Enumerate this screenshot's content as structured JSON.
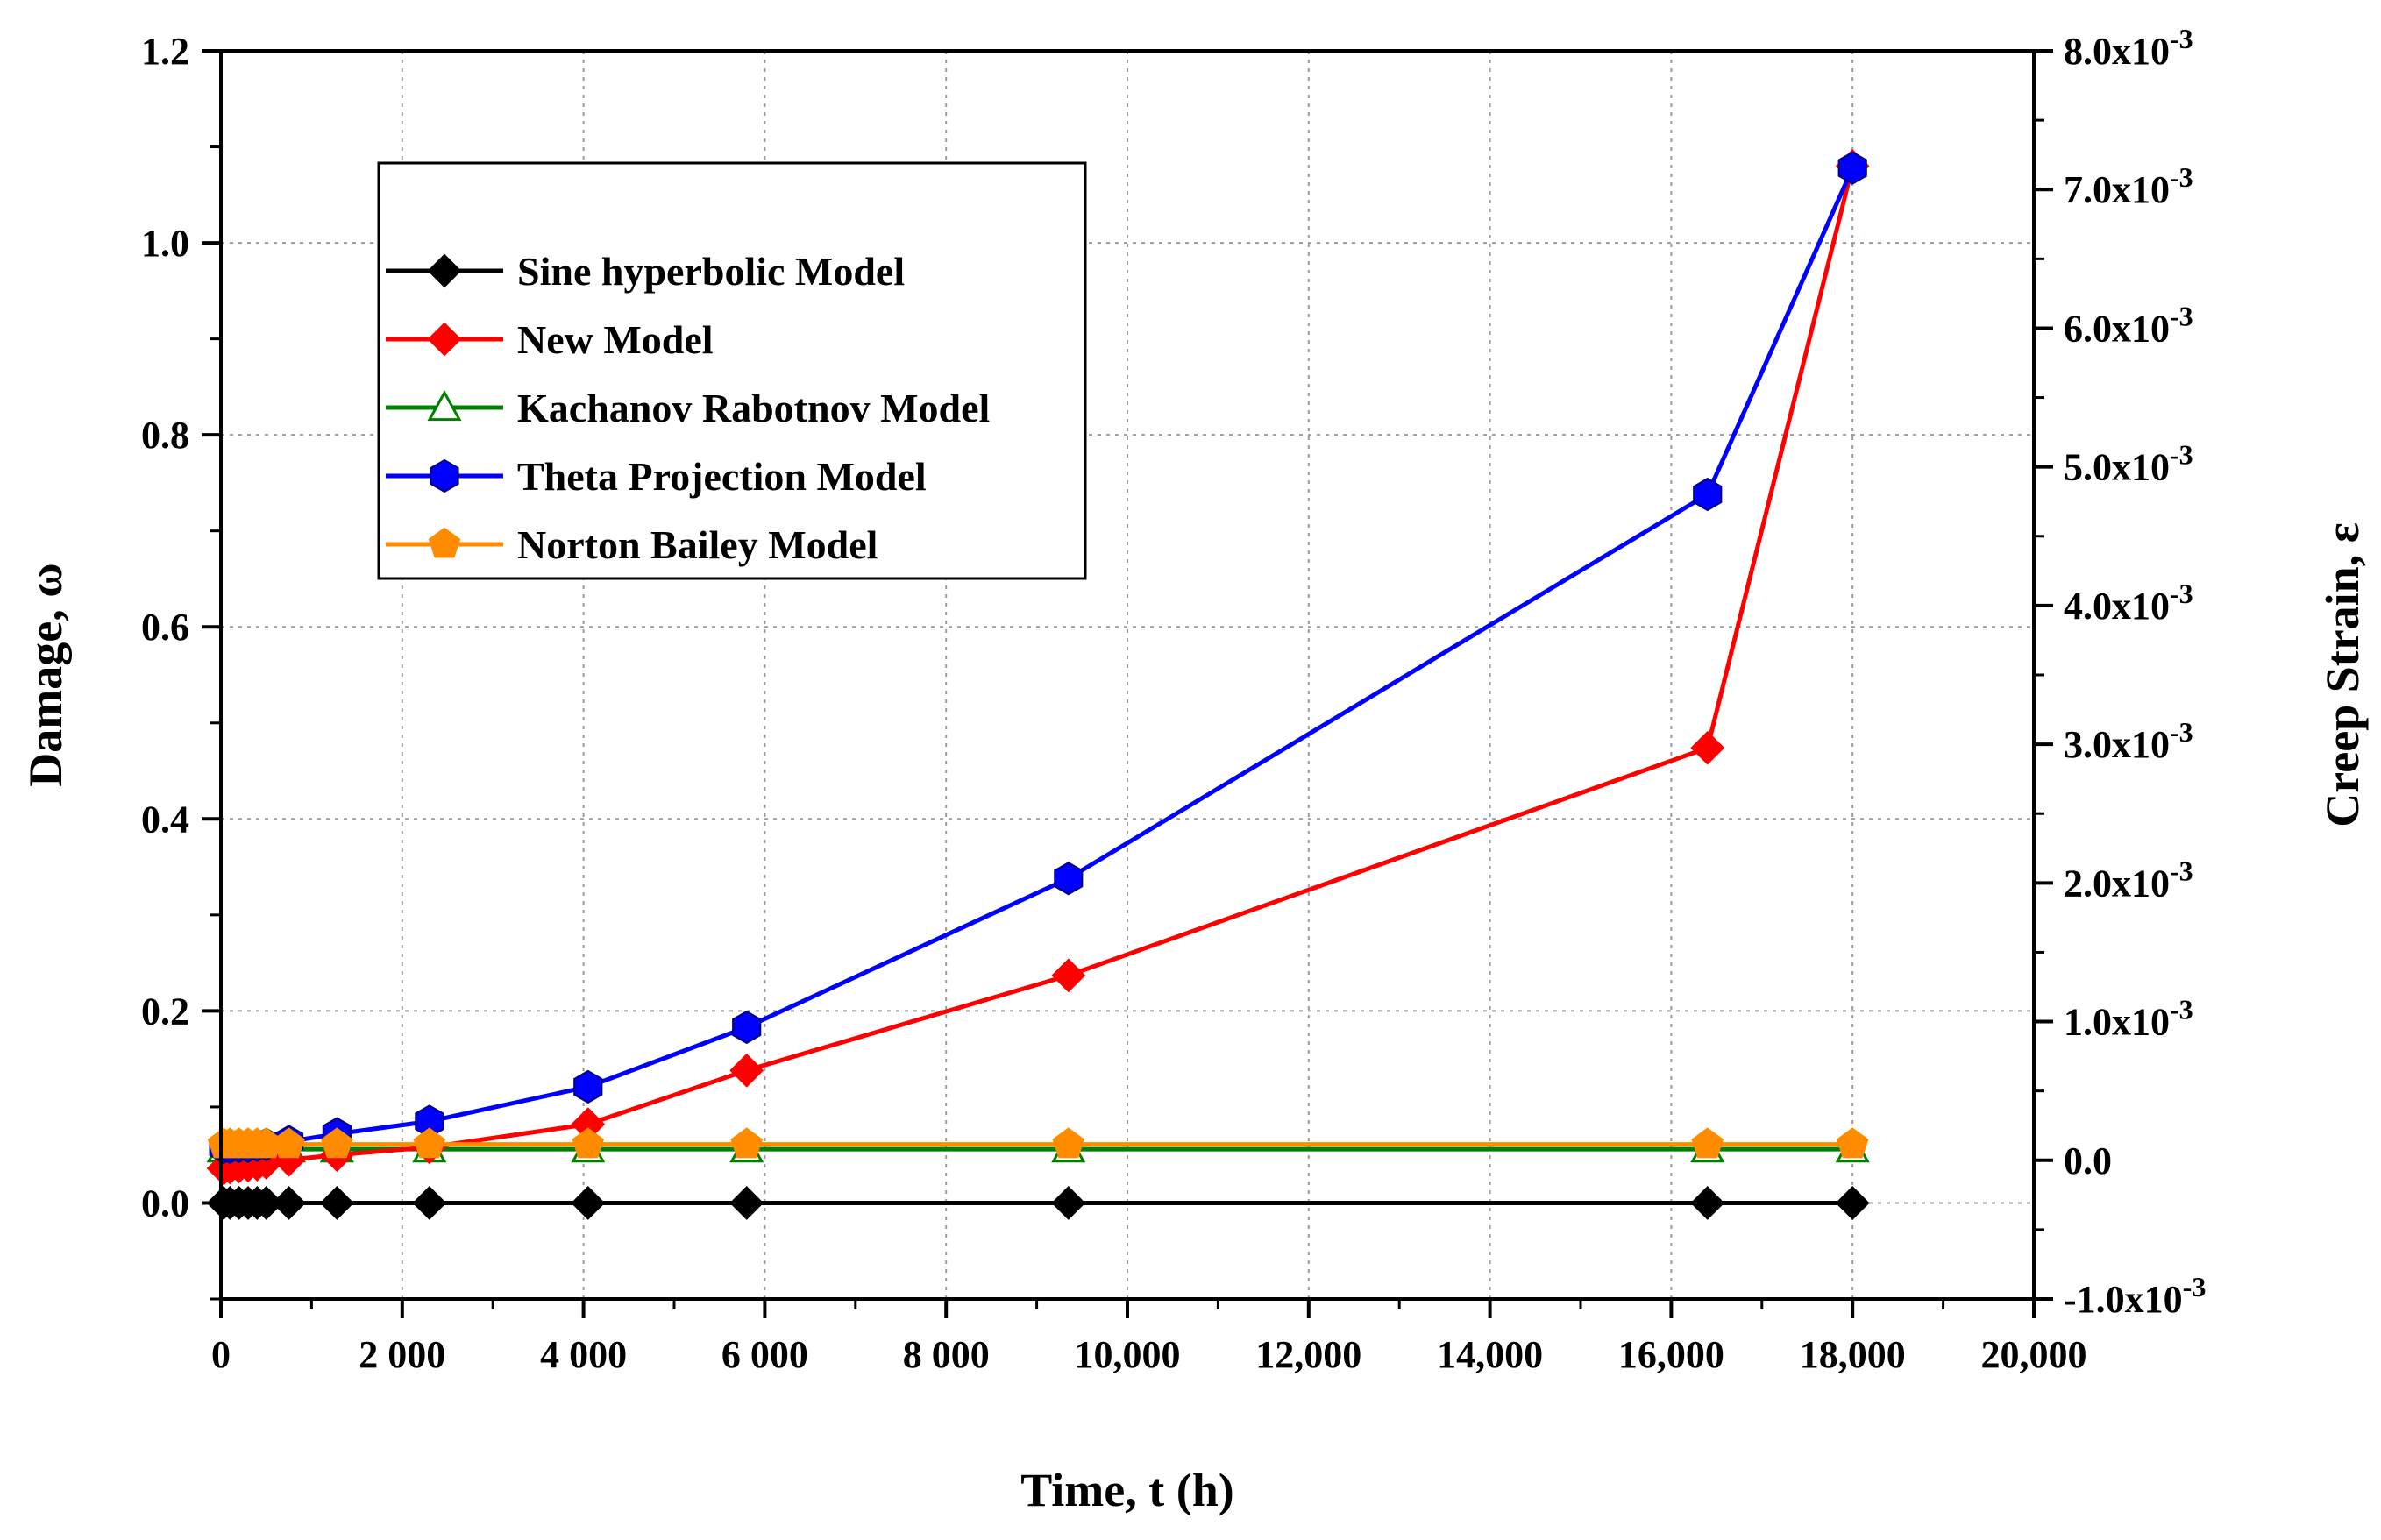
{
  "chart_data": {
    "type": "line",
    "title": "",
    "xlabel": "Time, t (h)",
    "ylabel_left": "Damage, ω",
    "ylabel_right": "Creep Strain, ε",
    "xlim": [
      0,
      20000
    ],
    "ylim_left": [
      -0.1,
      1.2
    ],
    "ylim_right": [
      -0.001,
      0.008
    ],
    "grid": true,
    "legend_position": "top-left",
    "x_ticks": [
      {
        "value": 0,
        "label": "0"
      },
      {
        "value": 2000,
        "label": "2 000"
      },
      {
        "value": 4000,
        "label": "4 000"
      },
      {
        "value": 6000,
        "label": "6 000"
      },
      {
        "value": 8000,
        "label": "8 000"
      },
      {
        "value": 10000,
        "label": "10,000"
      },
      {
        "value": 12000,
        "label": "12,000"
      },
      {
        "value": 14000,
        "label": "14,000"
      },
      {
        "value": 16000,
        "label": "16,000"
      },
      {
        "value": 18000,
        "label": "18,000"
      },
      {
        "value": 20000,
        "label": "20,000"
      }
    ],
    "y_left_ticks": [
      {
        "value": 0.0,
        "label": "0.0"
      },
      {
        "value": 0.2,
        "label": "0.2"
      },
      {
        "value": 0.4,
        "label": "0.4"
      },
      {
        "value": 0.6,
        "label": "0.6"
      },
      {
        "value": 0.8,
        "label": "0.8"
      },
      {
        "value": 1.0,
        "label": "1.0"
      },
      {
        "value": 1.2,
        "label": "1.2"
      }
    ],
    "y_right_ticks": [
      {
        "value": -0.001,
        "mantissa": "-1.0x10",
        "exp": "-3"
      },
      {
        "value": 0.0,
        "mantissa": "0.0",
        "exp": ""
      },
      {
        "value": 0.001,
        "mantissa": "1.0x10",
        "exp": "-3"
      },
      {
        "value": 0.002,
        "mantissa": "2.0x10",
        "exp": "-3"
      },
      {
        "value": 0.003,
        "mantissa": "3.0x10",
        "exp": "-3"
      },
      {
        "value": 0.004,
        "mantissa": "4.0x10",
        "exp": "-3"
      },
      {
        "value": 0.005,
        "mantissa": "5.0x10",
        "exp": "-3"
      },
      {
        "value": 0.006,
        "mantissa": "6.0x10",
        "exp": "-3"
      },
      {
        "value": 0.007,
        "mantissa": "7.0x10",
        "exp": "-3"
      },
      {
        "value": 0.008,
        "mantissa": "8.0x10",
        "exp": "-3"
      }
    ],
    "series": [
      {
        "name": "Sine hyperbolic Model",
        "color": "#000000",
        "marker": "diamond",
        "axis": "left",
        "x": [
          30,
          100,
          200,
          300,
          400,
          500,
          750,
          1280,
          2300,
          4050,
          5800,
          9350,
          16400,
          18000
        ],
        "y": [
          0.0,
          0.0,
          0.0,
          0.0,
          0.0,
          0.0,
          0.0,
          0.0,
          0.0,
          0.0,
          0.0,
          0.0,
          0.0,
          0.0
        ]
      },
      {
        "name": "New Model",
        "color": "#ff0000",
        "marker": "diamond",
        "axis": "left",
        "x": [
          30,
          100,
          200,
          300,
          400,
          500,
          750,
          1280,
          2300,
          4050,
          5800,
          9350,
          16400,
          18000
        ],
        "y": [
          0.036,
          0.037,
          0.038,
          0.039,
          0.04,
          0.042,
          0.045,
          0.05,
          0.058,
          0.082,
          0.138,
          0.237,
          0.474,
          1.08
        ]
      },
      {
        "name": "Kachanov Rabotnov Model",
        "color": "#008000",
        "marker": "triangle-open",
        "axis": "left",
        "x": [
          30,
          100,
          200,
          300,
          400,
          500,
          750,
          1280,
          2300,
          4050,
          5800,
          9350,
          16400,
          18000
        ],
        "y": [
          0.056,
          0.056,
          0.056,
          0.056,
          0.056,
          0.056,
          0.056,
          0.056,
          0.056,
          0.056,
          0.056,
          0.056,
          0.056,
          0.056
        ]
      },
      {
        "name": "Theta Projection Model",
        "color": "#0000ff",
        "marker": "hexagon",
        "axis": "left",
        "x": [
          30,
          100,
          200,
          300,
          400,
          500,
          750,
          1280,
          2300,
          4050,
          5800,
          9350,
          16400,
          18000
        ],
        "y": [
          0.058,
          0.058,
          0.059,
          0.059,
          0.06,
          0.061,
          0.064,
          0.072,
          0.085,
          0.121,
          0.183,
          0.338,
          0.738,
          1.078
        ]
      },
      {
        "name": "Norton Bailey Model",
        "color": "#ff8c00",
        "marker": "pentagon",
        "axis": "left",
        "x": [
          30,
          100,
          200,
          300,
          400,
          500,
          750,
          1280,
          2300,
          4050,
          5800,
          9350,
          16400,
          18000
        ],
        "y": [
          0.061,
          0.061,
          0.061,
          0.061,
          0.061,
          0.061,
          0.061,
          0.061,
          0.061,
          0.061,
          0.061,
          0.061,
          0.061,
          0.061
        ]
      }
    ]
  }
}
